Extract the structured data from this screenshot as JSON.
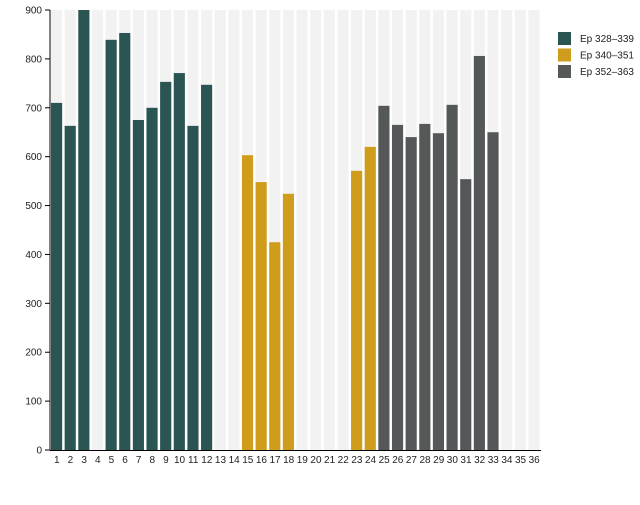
{
  "chart_data": {
    "type": "bar",
    "title": "",
    "xlabel": "",
    "ylabel": "",
    "ylim": [
      0,
      900
    ],
    "yticks": [
      0,
      100,
      200,
      300,
      400,
      500,
      600,
      700,
      800,
      900
    ],
    "grid": false,
    "background_stripes": true,
    "legend_position": "right",
    "categories": [
      "1",
      "2",
      "3",
      "4",
      "5",
      "6",
      "7",
      "8",
      "9",
      "10",
      "11",
      "12",
      "13",
      "14",
      "15",
      "16",
      "17",
      "18",
      "19",
      "20",
      "21",
      "22",
      "23",
      "24",
      "25",
      "26",
      "27",
      "28",
      "29",
      "30",
      "31",
      "32",
      "33",
      "34",
      "35",
      "36"
    ],
    "series": [
      {
        "name": "Ep 328–339",
        "color": "#2b5553",
        "values": [
          710,
          663,
          900,
          null,
          839,
          853,
          675,
          700,
          753,
          771,
          663,
          747,
          null,
          null,
          null,
          null,
          null,
          null,
          null,
          null,
          null,
          null,
          null,
          null,
          null,
          null,
          null,
          null,
          null,
          null,
          null,
          null,
          null,
          null,
          null,
          null
        ]
      },
      {
        "name": "Ep 340–351",
        "color": "#d09c1b",
        "values": [
          null,
          null,
          null,
          null,
          null,
          null,
          null,
          null,
          null,
          null,
          null,
          null,
          null,
          null,
          603,
          548,
          425,
          524,
          null,
          null,
          null,
          null,
          571,
          620,
          null,
          null,
          null,
          null,
          null,
          null,
          null,
          null,
          null,
          null,
          null,
          null
        ]
      },
      {
        "name": "Ep 352–363",
        "color": "#555859",
        "values": [
          null,
          null,
          null,
          null,
          null,
          null,
          null,
          null,
          null,
          null,
          null,
          null,
          null,
          null,
          null,
          null,
          null,
          null,
          null,
          null,
          null,
          null,
          null,
          null,
          704,
          665,
          640,
          667,
          648,
          706,
          554,
          806,
          650,
          null,
          null,
          null
        ]
      }
    ]
  }
}
